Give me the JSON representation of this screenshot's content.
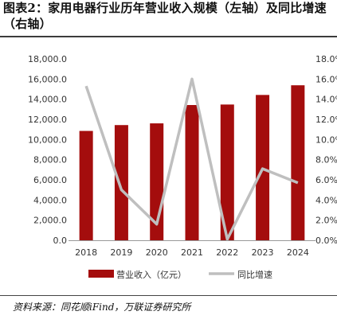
{
  "title": "图表2：家用电器行业历年营业收入规模（左轴）及同比增速（右轴）",
  "source": "资料来源：同花顺iFind，万联证券研究所",
  "chart_data": {
    "type": "bar",
    "categories": [
      "2018",
      "2019",
      "2020",
      "2021",
      "2022",
      "2023",
      "2024"
    ],
    "series": [
      {
        "name": "营业收入（亿元）",
        "type": "bar",
        "axis": "left",
        "color": "#a40d0d",
        "values": [
          10850,
          11430,
          11600,
          13420,
          13470,
          14420,
          15380
        ]
      },
      {
        "name": "同比增速",
        "type": "line",
        "axis": "right",
        "color": "#bfbfbf",
        "values": [
          15.3,
          5.0,
          1.6,
          16.0,
          0.1,
          7.1,
          5.7
        ]
      }
    ],
    "y_left": {
      "min": 0,
      "max": 18000,
      "step": 2000,
      "ticks": [
        "0.0",
        "2,000.0",
        "4,000.0",
        "6,000.0",
        "8,000.0",
        "10,000.0",
        "12,000.0",
        "14,000.0",
        "16,000.0",
        "18,000.0"
      ]
    },
    "y_right": {
      "min": 0,
      "max": 18,
      "step": 2,
      "ticks": [
        "0.0%",
        "2.0%",
        "4.0%",
        "6.0%",
        "8.0%",
        "10.0%",
        "12.0%",
        "14.0%",
        "16.0%",
        "18.0%"
      ]
    },
    "legend_position": "bottom",
    "grid": false
  }
}
